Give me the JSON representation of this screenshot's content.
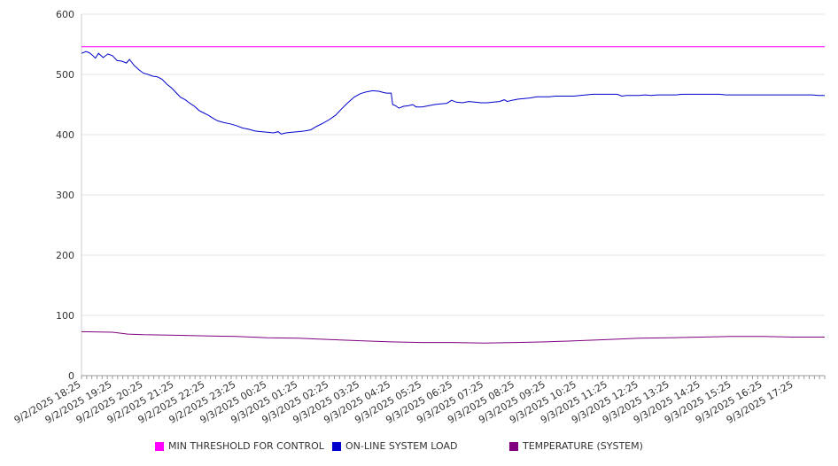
{
  "chart_data": {
    "type": "line",
    "title": "",
    "xlabel": "",
    "ylabel": "",
    "ylim": [
      0,
      600
    ],
    "yticks": [
      0,
      100,
      200,
      300,
      400,
      500,
      600
    ],
    "grid": true,
    "legend_position": "bottom",
    "x_labels": [
      "9/2/2025 18:25",
      "9/2/2025 19:25",
      "9/2/2025 20:25",
      "9/2/2025 21:25",
      "9/2/2025 22:25",
      "9/2/2025 23:25",
      "9/3/2025 00:25",
      "9/3/2025 01:25",
      "9/3/2025 02:25",
      "9/3/2025 03:25",
      "9/3/2025 04:25",
      "9/3/2025 05:25",
      "9/3/2025 06:25",
      "9/3/2025 07:25",
      "9/3/2025 08:25",
      "9/3/2025 09:25",
      "9/3/2025 10:25",
      "9/3/2025 11:25",
      "9/3/2025 12:25",
      "9/3/2025 13:25",
      "9/3/2025 14:25",
      "9/3/2025 15:25",
      "9/3/2025 16:25",
      "9/3/2025 17:25"
    ],
    "x_range_hours": [
      0,
      24
    ],
    "series": [
      {
        "name": "MIN THRESHOLD FOR CONTROL",
        "color": "#ff00ff",
        "points": [
          [
            0,
            546
          ],
          [
            24,
            546
          ]
        ]
      },
      {
        "name": "ON-LINE SYSTEM LOAD",
        "color": "#0000cc",
        "points": [
          [
            0,
            535
          ],
          [
            0.15,
            538
          ],
          [
            0.25,
            536
          ],
          [
            0.35,
            532
          ],
          [
            0.45,
            527
          ],
          [
            0.55,
            535
          ],
          [
            0.7,
            528
          ],
          [
            0.85,
            534
          ],
          [
            1.0,
            531
          ],
          [
            1.15,
            523
          ],
          [
            1.3,
            522
          ],
          [
            1.45,
            519
          ],
          [
            1.55,
            525
          ],
          [
            1.7,
            515
          ],
          [
            1.85,
            508
          ],
          [
            2.0,
            502
          ],
          [
            2.15,
            500
          ],
          [
            2.3,
            497
          ],
          [
            2.45,
            496
          ],
          [
            2.6,
            492
          ],
          [
            2.75,
            484
          ],
          [
            2.9,
            478
          ],
          [
            3.05,
            470
          ],
          [
            3.2,
            462
          ],
          [
            3.35,
            458
          ],
          [
            3.5,
            452
          ],
          [
            3.65,
            447
          ],
          [
            3.8,
            440
          ],
          [
            3.95,
            436
          ],
          [
            4.1,
            432
          ],
          [
            4.25,
            427
          ],
          [
            4.4,
            423
          ],
          [
            4.6,
            420
          ],
          [
            4.8,
            418
          ],
          [
            5.0,
            415
          ],
          [
            5.2,
            411
          ],
          [
            5.4,
            409
          ],
          [
            5.6,
            406
          ],
          [
            5.8,
            405
          ],
          [
            6.0,
            404
          ],
          [
            6.2,
            403
          ],
          [
            6.35,
            405
          ],
          [
            6.45,
            401
          ],
          [
            6.6,
            403
          ],
          [
            6.8,
            404
          ],
          [
            7.0,
            405
          ],
          [
            7.2,
            406
          ],
          [
            7.4,
            408
          ],
          [
            7.6,
            414
          ],
          [
            7.8,
            419
          ],
          [
            8.0,
            425
          ],
          [
            8.2,
            432
          ],
          [
            8.4,
            443
          ],
          [
            8.6,
            453
          ],
          [
            8.8,
            462
          ],
          [
            9.0,
            468
          ],
          [
            9.2,
            471
          ],
          [
            9.4,
            473
          ],
          [
            9.6,
            472
          ],
          [
            9.75,
            470
          ],
          [
            9.85,
            469
          ],
          [
            10.0,
            469
          ],
          [
            10.05,
            450
          ],
          [
            10.15,
            448
          ],
          [
            10.25,
            444
          ],
          [
            10.4,
            447
          ],
          [
            10.55,
            448
          ],
          [
            10.7,
            450
          ],
          [
            10.8,
            446
          ],
          [
            11.0,
            446
          ],
          [
            11.2,
            448
          ],
          [
            11.4,
            450
          ],
          [
            11.6,
            451
          ],
          [
            11.8,
            452
          ],
          [
            11.95,
            457
          ],
          [
            12.1,
            454
          ],
          [
            12.3,
            453
          ],
          [
            12.5,
            455
          ],
          [
            12.7,
            454
          ],
          [
            12.9,
            453
          ],
          [
            13.1,
            453
          ],
          [
            13.3,
            454
          ],
          [
            13.5,
            455
          ],
          [
            13.65,
            458
          ],
          [
            13.75,
            455
          ],
          [
            13.9,
            457
          ],
          [
            14.1,
            459
          ],
          [
            14.3,
            460
          ],
          [
            14.5,
            461
          ],
          [
            14.7,
            463
          ],
          [
            14.9,
            463
          ],
          [
            15.1,
            463
          ],
          [
            15.3,
            464
          ],
          [
            15.5,
            464
          ],
          [
            15.7,
            464
          ],
          [
            15.9,
            464
          ],
          [
            16.1,
            465
          ],
          [
            16.3,
            466
          ],
          [
            16.5,
            467
          ],
          [
            16.7,
            467
          ],
          [
            16.9,
            467
          ],
          [
            17.1,
            467
          ],
          [
            17.3,
            467
          ],
          [
            17.45,
            464
          ],
          [
            17.6,
            465
          ],
          [
            17.8,
            465
          ],
          [
            18.0,
            465
          ],
          [
            18.2,
            466
          ],
          [
            18.4,
            465
          ],
          [
            18.6,
            466
          ],
          [
            18.8,
            466
          ],
          [
            19.0,
            466
          ],
          [
            19.2,
            466
          ],
          [
            19.4,
            467
          ],
          [
            19.6,
            467
          ],
          [
            19.8,
            467
          ],
          [
            20.0,
            467
          ],
          [
            20.2,
            467
          ],
          [
            20.4,
            467
          ],
          [
            20.6,
            467
          ],
          [
            20.8,
            466
          ],
          [
            21.0,
            466
          ],
          [
            21.2,
            466
          ],
          [
            21.4,
            466
          ],
          [
            21.6,
            466
          ],
          [
            21.8,
            466
          ],
          [
            22.0,
            466
          ],
          [
            22.2,
            466
          ],
          [
            22.4,
            466
          ],
          [
            22.6,
            466
          ],
          [
            22.8,
            466
          ],
          [
            23.0,
            466
          ],
          [
            23.2,
            466
          ],
          [
            23.4,
            466
          ],
          [
            23.6,
            466
          ],
          [
            23.8,
            465
          ],
          [
            24.0,
            465
          ]
        ]
      },
      {
        "name": "TEMPERATURE (SYSTEM)",
        "color": "#800080",
        "points": [
          [
            0,
            73
          ],
          [
            1,
            72
          ],
          [
            1.5,
            69
          ],
          [
            2,
            68
          ],
          [
            3,
            67
          ],
          [
            4,
            66
          ],
          [
            5,
            65
          ],
          [
            6,
            63
          ],
          [
            7,
            62
          ],
          [
            8,
            60
          ],
          [
            9,
            58
          ],
          [
            10,
            56
          ],
          [
            11,
            55
          ],
          [
            12,
            55
          ],
          [
            13,
            54
          ],
          [
            14,
            55
          ],
          [
            15,
            56
          ],
          [
            16,
            58
          ],
          [
            17,
            60
          ],
          [
            18,
            62
          ],
          [
            19,
            63
          ],
          [
            20,
            64
          ],
          [
            21,
            65
          ],
          [
            22,
            65
          ],
          [
            23,
            64
          ],
          [
            24,
            64
          ]
        ]
      }
    ]
  }
}
